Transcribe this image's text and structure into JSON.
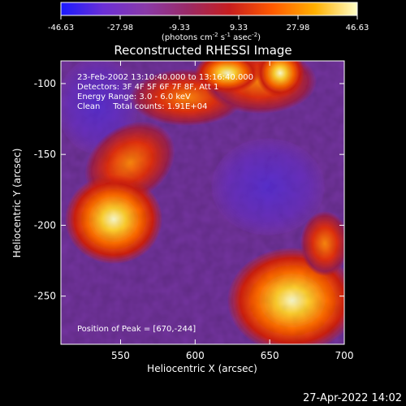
{
  "colorbar": {
    "ticks": [
      "-46.63",
      "-27.98",
      "-9.33",
      "9.33",
      "27.98",
      "46.63"
    ],
    "unit_parts": [
      "(photons cm",
      "-2",
      " s",
      "-1",
      " asec",
      "-2",
      ")"
    ],
    "colors": [
      "#1a1aff",
      "#6b2fd6",
      "#8a3aa8",
      "#9a2a66",
      "#c81e1e",
      "#ff5a00",
      "#ffb000",
      "#ffffc8"
    ]
  },
  "plot": {
    "title": "Reconstructed RHESSI Image",
    "xlabel": "Heliocentric X (arcsec)",
    "ylabel": "Heliocentric Y (arcsec)",
    "x_ticks": [
      "550",
      "600",
      "650",
      "700"
    ],
    "y_ticks": [
      "-100",
      "-150",
      "-200",
      "-250"
    ],
    "annotations": [
      "23-Feb-2002 13:10:40.000 to 13:16:40.000",
      "Detectors: 3F 4F 5F 6F 7F 8F, Att 1",
      "Energy Range: 3.0 - 6.0 keV",
      "Clean     Total counts: 1.91E+04"
    ],
    "peak_label": "Position of Peak = [670,-244]"
  },
  "footer": {
    "timestamp": "27-Apr-2022 14:02"
  }
}
